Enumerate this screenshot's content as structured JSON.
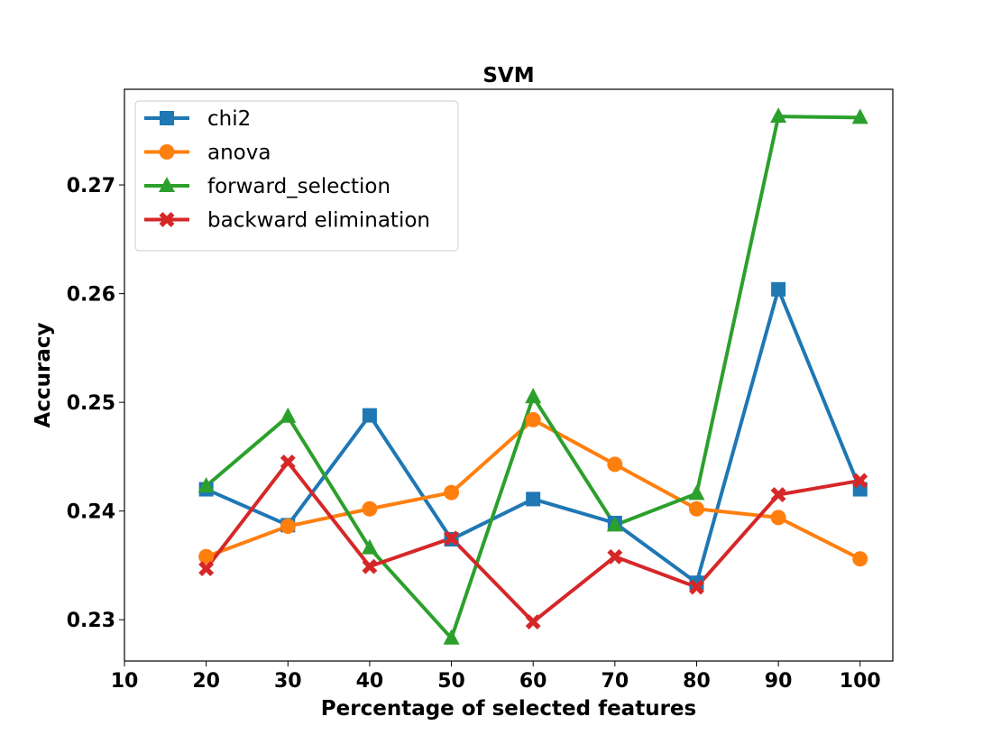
{
  "chart_data": {
    "type": "line",
    "title": "SVM",
    "xlabel": "Percentage of selected features",
    "ylabel": "Accuracy",
    "xlim": [
      10,
      104
    ],
    "ylim": [
      0.2262,
      0.2788
    ],
    "xticks": [
      10,
      20,
      30,
      40,
      50,
      60,
      70,
      80,
      90,
      100
    ],
    "yticks": [
      0.23,
      0.24,
      0.25,
      0.26,
      0.27
    ],
    "ytick_labels": [
      "0.23",
      "0.24",
      "0.25",
      "0.26",
      "0.27"
    ],
    "x": [
      20,
      30,
      40,
      50,
      60,
      70,
      80,
      90,
      100
    ],
    "legend_position": "top-left",
    "grid": false,
    "series": [
      {
        "name": "chi2",
        "color": "#1f77b4",
        "marker": "square",
        "values": [
          0.242,
          0.2387,
          0.2488,
          0.2374,
          0.2411,
          0.2389,
          0.2334,
          0.2604,
          0.242
        ]
      },
      {
        "name": "anova",
        "color": "#ff7f0e",
        "marker": "circle",
        "values": [
          0.2358,
          0.2386,
          0.2402,
          0.2417,
          0.2484,
          0.2443,
          0.2402,
          0.2394,
          0.2356
        ]
      },
      {
        "name": "forward_selection",
        "color": "#2ca02c",
        "marker": "triangle",
        "values": [
          0.2423,
          0.2487,
          0.2366,
          0.2283,
          0.2505,
          0.2387,
          0.2416,
          0.2763,
          0.2762
        ]
      },
      {
        "name": "backward elimination",
        "color": "#d62728",
        "marker": "x",
        "values": [
          0.2347,
          0.2445,
          0.2349,
          0.2375,
          0.2298,
          0.2358,
          0.233,
          0.2415,
          0.2428
        ]
      }
    ]
  }
}
